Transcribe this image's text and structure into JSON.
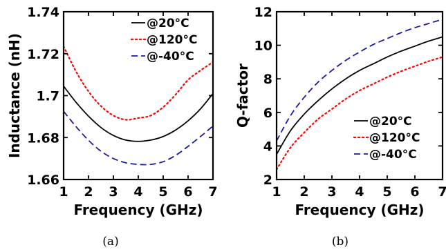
{
  "chart_data": [
    {
      "type": "line",
      "caption": "(a)",
      "xlabel": "Frequency (GHz)",
      "ylabel": "Inductance (nH)",
      "xlim": [
        1,
        7
      ],
      "ylim": [
        1.66,
        1.74
      ],
      "xticks": [
        "1",
        "2",
        "3",
        "4",
        "5",
        "6",
        "7"
      ],
      "yticks": [
        "1.66",
        "1.68",
        "1.7",
        "1.72",
        "1.74"
      ],
      "legend_position": "top-right",
      "series": [
        {
          "name": "@20°C",
          "color": "#000000",
          "style": "solid",
          "x": [
            1,
            1.5,
            2,
            2.5,
            3,
            3.5,
            4,
            4.5,
            5,
            5.5,
            6,
            6.5,
            7
          ],
          "y": [
            1.7045,
            1.6968,
            1.6902,
            1.6848,
            1.681,
            1.6788,
            1.6782,
            1.6788,
            1.6805,
            1.6836,
            1.688,
            1.6937,
            1.701
          ]
        },
        {
          "name": "@120°C",
          "color": "#ff0000",
          "style": "dotted",
          "x": [
            1,
            1.5,
            2,
            2.5,
            3,
            3.5,
            4,
            4.5,
            5,
            5.5,
            6,
            6.5,
            7
          ],
          "y": [
            1.7235,
            1.7115,
            1.702,
            1.695,
            1.6905,
            1.6885,
            1.6893,
            1.6905,
            1.6945,
            1.7005,
            1.7075,
            1.712,
            1.716
          ]
        },
        {
          "name": "@-40°C",
          "color": "#1a1aa0",
          "style": "dashed",
          "x": [
            1,
            1.5,
            2,
            2.5,
            3,
            3.5,
            4,
            4.5,
            5,
            5.5,
            6,
            6.5,
            7
          ],
          "y": [
            1.6925,
            1.6852,
            1.6787,
            1.6735,
            1.67,
            1.668,
            1.6672,
            1.6672,
            1.6685,
            1.6715,
            1.6758,
            1.6805,
            1.6855
          ]
        }
      ]
    },
    {
      "type": "line",
      "caption": "(b)",
      "xlabel": "Frequency (GHz)",
      "ylabel": "Q-factor",
      "xlim": [
        1,
        7
      ],
      "ylim": [
        2,
        12
      ],
      "xticks": [
        "1",
        "2",
        "3",
        "4",
        "5",
        "6",
        "7"
      ],
      "yticks": [
        "2",
        "4",
        "6",
        "8",
        "10",
        "12"
      ],
      "legend_position": "bottom-right",
      "series": [
        {
          "name": "@20°C",
          "color": "#000000",
          "style": "solid",
          "x": [
            1,
            1.5,
            2,
            2.5,
            3,
            3.5,
            4,
            4.5,
            5,
            5.5,
            6,
            6.5,
            7
          ],
          "y": [
            3.5,
            4.9,
            5.9,
            6.7,
            7.4,
            8.0,
            8.5,
            8.9,
            9.3,
            9.65,
            9.95,
            10.25,
            10.5
          ]
        },
        {
          "name": "@120°C",
          "color": "#ff0000",
          "style": "dotted",
          "x": [
            1,
            1.5,
            2,
            2.5,
            3,
            3.5,
            4,
            4.5,
            5,
            5.5,
            6,
            6.5,
            7
          ],
          "y": [
            2.6,
            3.9,
            4.8,
            5.6,
            6.2,
            6.8,
            7.3,
            7.7,
            8.1,
            8.45,
            8.75,
            9.05,
            9.3
          ]
        },
        {
          "name": "@-40°C",
          "color": "#1a1aa0",
          "style": "dashed",
          "x": [
            1,
            1.5,
            2,
            2.5,
            3,
            3.5,
            4,
            4.5,
            5,
            5.5,
            6,
            6.5,
            7
          ],
          "y": [
            4.3,
            5.8,
            6.9,
            7.8,
            8.5,
            9.1,
            9.6,
            10.05,
            10.4,
            10.75,
            11.05,
            11.3,
            11.55
          ]
        }
      ]
    }
  ]
}
